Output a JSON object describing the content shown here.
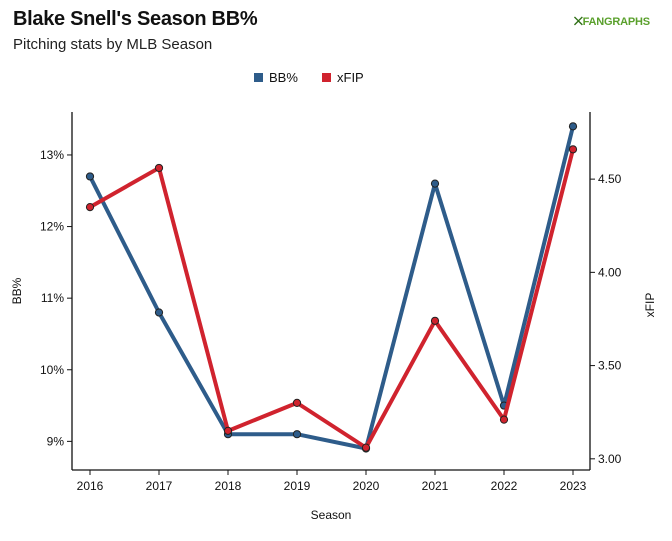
{
  "header": {
    "title": "Blake Snell's Season BB%",
    "subtitle": "Pitching stats by MLB Season",
    "logo_text": "FANGRAPHS",
    "logo_mark": "⨉"
  },
  "chart_data": {
    "type": "line",
    "xlabel": "Season",
    "x": [
      "2016",
      "2017",
      "2018",
      "2019",
      "2020",
      "2021",
      "2022",
      "2023"
    ],
    "series": [
      {
        "name": "BB%",
        "axis": "left",
        "color": "#2e5c8a",
        "values": [
          12.7,
          10.8,
          9.1,
          9.1,
          8.9,
          12.6,
          9.5,
          13.4
        ]
      },
      {
        "name": "xFIP",
        "axis": "right",
        "color": "#d0232e",
        "values": [
          4.35,
          4.56,
          3.15,
          3.3,
          3.06,
          3.74,
          3.21,
          4.66
        ]
      }
    ],
    "y_left": {
      "label": "BB%",
      "ticks": [
        9,
        10,
        11,
        12,
        13
      ],
      "tick_labels": [
        "9%",
        "10%",
        "11%",
        "12%",
        "13%"
      ],
      "range": [
        8.6,
        13.6
      ]
    },
    "y_right": {
      "label": "xFIP",
      "ticks": [
        3.0,
        3.5,
        4.0,
        4.5
      ],
      "tick_labels": [
        "3.00",
        "3.50",
        "4.00",
        "4.50"
      ],
      "range": [
        2.94,
        4.86
      ]
    },
    "legend": "top-center",
    "grid": false
  }
}
